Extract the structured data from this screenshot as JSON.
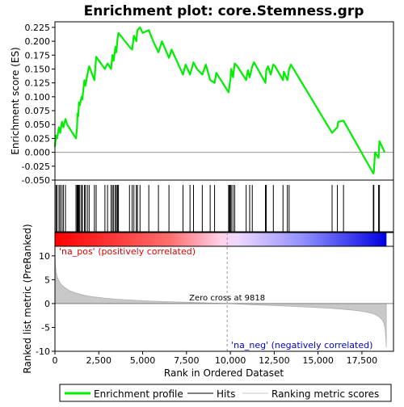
{
  "chart_data": {
    "type": "line",
    "title": "Enrichment plot: core.Stemness.grp",
    "top_panel": {
      "ylabel": "Enrichment score (ES)",
      "ylim": [
        -0.05,
        0.235
      ],
      "yticks": [
        -0.05,
        -0.025,
        0.0,
        0.025,
        0.05,
        0.075,
        0.1,
        0.125,
        0.15,
        0.175,
        0.2,
        0.225
      ],
      "ytick_labels": [
        "-0.050",
        "-0.025",
        "0.000",
        "0.025",
        "0.050",
        "0.075",
        "0.100",
        "0.125",
        "0.150",
        "0.175",
        "0.200",
        "0.225"
      ],
      "series": [
        {
          "name": "Enrichment profile",
          "color": "#00ee00",
          "x": [
            0,
            60,
            120,
            230,
            300,
            400,
            480,
            600,
            700,
            900,
            1200,
            1260,
            1290,
            1330,
            1370,
            1420,
            1520,
            1560,
            1680,
            1740,
            1850,
            1950,
            2250,
            2350,
            2850,
            3000,
            3200,
            3280,
            3350,
            3450,
            3500,
            3570,
            3620,
            4250,
            4400,
            4500,
            4640,
            4700,
            4850,
            5000,
            5350,
            5600,
            5900,
            6100,
            6500,
            6650,
            7300,
            7450,
            7700,
            7900,
            8100,
            8400,
            8600,
            8850,
            9100,
            9200,
            9900,
            9950,
            10000,
            10050,
            10150,
            10250,
            10400,
            10900,
            11000,
            11100,
            11250,
            11350,
            12000,
            12050,
            12150,
            12300,
            12450,
            12550,
            13000,
            13050,
            13250,
            13350,
            13450,
            15800,
            16100,
            16150,
            16450,
            18150,
            18180,
            18250,
            18450,
            18500,
            18800
          ],
          "y": [
            0.01,
            0.03,
            0.025,
            0.045,
            0.035,
            0.055,
            0.045,
            0.06,
            0.05,
            0.04,
            0.025,
            0.045,
            0.07,
            0.065,
            0.09,
            0.085,
            0.1,
            0.095,
            0.13,
            0.12,
            0.14,
            0.155,
            0.13,
            0.172,
            0.15,
            0.16,
            0.15,
            0.175,
            0.165,
            0.19,
            0.18,
            0.205,
            0.215,
            0.19,
            0.185,
            0.21,
            0.2,
            0.22,
            0.225,
            0.215,
            0.22,
            0.2,
            0.18,
            0.2,
            0.17,
            0.185,
            0.14,
            0.158,
            0.14,
            0.162,
            0.15,
            0.14,
            0.158,
            0.13,
            0.125,
            0.143,
            0.108,
            0.12,
            0.13,
            0.15,
            0.135,
            0.16,
            0.155,
            0.13,
            0.148,
            0.135,
            0.155,
            0.162,
            0.125,
            0.148,
            0.155,
            0.14,
            0.158,
            0.155,
            0.13,
            0.145,
            0.13,
            0.15,
            0.158,
            0.035,
            0.045,
            0.055,
            0.057,
            -0.038,
            -0.035,
            0.0,
            -0.01,
            0.02,
            0.0
          ]
        }
      ],
      "hits": [
        60,
        120,
        230,
        300,
        400,
        480,
        600,
        1200,
        1260,
        1290,
        1330,
        1370,
        1420,
        1520,
        1560,
        1680,
        1740,
        1850,
        1950,
        2250,
        2350,
        2850,
        3000,
        3200,
        3280,
        3350,
        3450,
        3500,
        3570,
        3620,
        4250,
        4400,
        4500,
        4640,
        4700,
        4850,
        5350,
        5900,
        6500,
        7300,
        7700,
        7900,
        8400,
        8850,
        9100,
        9900,
        9950,
        10000,
        10050,
        10150,
        10250,
        10900,
        11100,
        11250,
        12000,
        12050,
        12450,
        13000,
        13250,
        13350,
        15800,
        16100,
        16450,
        18150,
        18180,
        18450,
        18500
      ]
    },
    "bottom_panel": {
      "ylabel": "Ranked list metric (PreRanked)",
      "xlabel": "Rank in Ordered Dataset",
      "ylim": [
        -10,
        12
      ],
      "yticks": [
        -10,
        -5,
        0,
        5,
        10
      ],
      "xticks": [
        0,
        2500,
        5000,
        7500,
        10000,
        12500,
        15000,
        17500
      ],
      "xtick_labels": [
        "0",
        "2,500",
        "5,000",
        "7,500",
        "10,000",
        "12,500",
        "15,000",
        "17,500"
      ],
      "xlim": [
        0,
        19300
      ],
      "n_genes": 18900,
      "zero_cross": 9818,
      "zero_cross_label": "Zero cross at 9818",
      "pos_label": "'na_pos' (positively correlated)",
      "neg_label": "'na_neg' (negatively correlated)",
      "metric_curve": {
        "x": [
          0,
          20,
          60,
          120,
          200,
          300,
          450,
          650,
          900,
          1200,
          1600,
          2100,
          2800,
          3600,
          4500,
          5500,
          6500,
          7500,
          8500,
          9300,
          9818,
          10500,
          11500,
          12500,
          13500,
          14500,
          15500,
          16300,
          17000,
          17500,
          17900,
          18200,
          18450,
          18650,
          18750,
          18820,
          18860,
          18890
        ],
        "y": [
          11.5,
          8.5,
          6.8,
          5.7,
          5.0,
          4.3,
          3.7,
          3.1,
          2.6,
          2.2,
          1.8,
          1.45,
          1.15,
          0.9,
          0.7,
          0.52,
          0.38,
          0.27,
          0.16,
          0.07,
          0.0,
          -0.12,
          -0.28,
          -0.42,
          -0.58,
          -0.75,
          -0.95,
          -1.15,
          -1.38,
          -1.62,
          -1.9,
          -2.2,
          -2.7,
          -3.4,
          -4.1,
          -5.2,
          -7.0,
          -9.2
        ]
      }
    },
    "legend": {
      "items": [
        "Enrichment profile",
        "Hits",
        "Ranking metric scores"
      ],
      "colors": [
        "#00ee00",
        "#000000",
        "#c8c8c8"
      ]
    }
  }
}
